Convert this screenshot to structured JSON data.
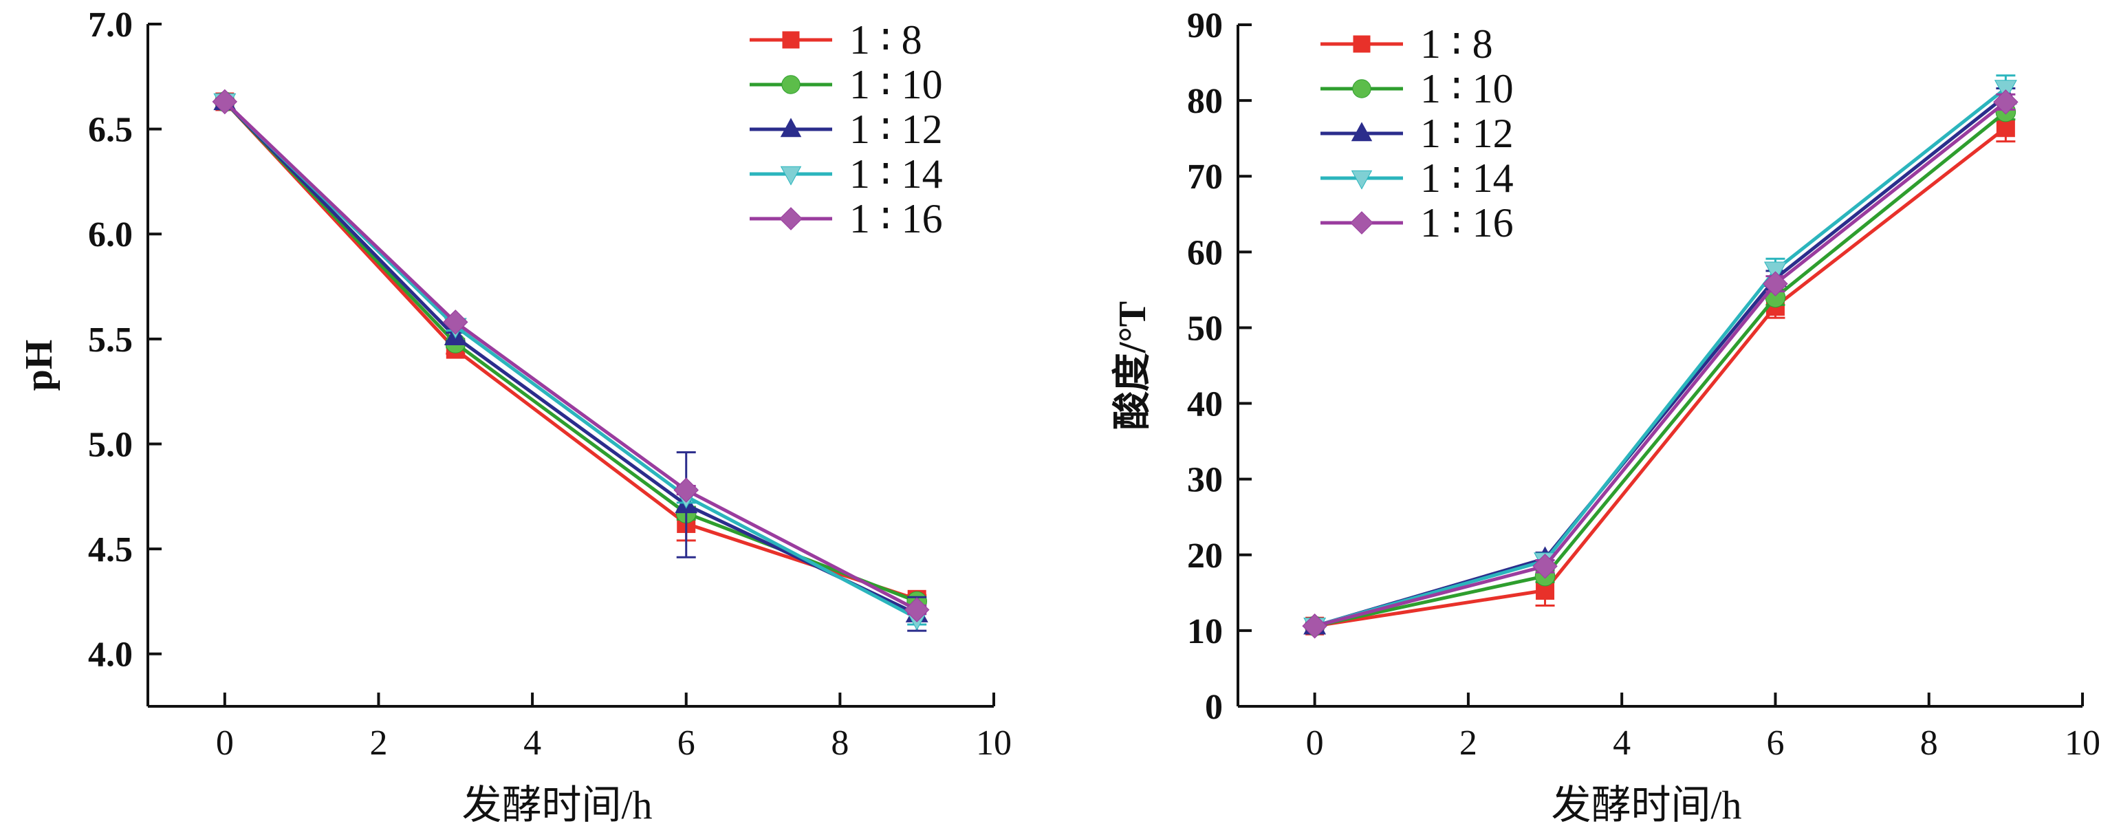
{
  "chart_data": [
    {
      "type": "line",
      "title": "",
      "xlabel": "发酵时间/h",
      "ylabel": "pH",
      "xlim": [
        -1,
        10
      ],
      "ylim": [
        3.75,
        7.0
      ],
      "xticks": [
        0,
        2,
        4,
        6,
        8,
        10
      ],
      "xtick_labels": [
        "0",
        "2",
        "4",
        "6",
        "8",
        "10"
      ],
      "yticks": [
        4.0,
        4.5,
        5.0,
        5.5,
        6.0,
        6.5,
        7.0
      ],
      "ytick_labels": [
        "4.0",
        "4.5",
        "5.0",
        "5.5",
        "6.0",
        "6.5",
        "7.0"
      ],
      "grid": false,
      "legend_position": "top-right",
      "x": [
        0,
        3,
        6,
        9
      ],
      "series": [
        {
          "name": "1 ∶ 8",
          "color": "#e8312a",
          "marker": "square",
          "values": [
            6.63,
            5.45,
            4.62,
            4.26
          ],
          "errors": [
            0.01,
            0.02,
            0.08,
            0.02
          ]
        },
        {
          "name": "1 ∶ 10",
          "color": "#2e9e2e",
          "marker": "circle",
          "values": [
            6.63,
            5.48,
            4.67,
            4.25
          ],
          "errors": [
            0.01,
            0.02,
            0.03,
            0.02
          ]
        },
        {
          "name": "1 ∶ 12",
          "color": "#2b2d8c",
          "marker": "triangle-up",
          "values": [
            6.63,
            5.51,
            4.71,
            4.19
          ],
          "errors": [
            0.01,
            0.02,
            0.25,
            0.08
          ]
        },
        {
          "name": "1 ∶ 14",
          "color": "#2bb5bd",
          "marker": "triangle-down",
          "values": [
            6.63,
            5.56,
            4.75,
            4.17
          ],
          "errors": [
            0.01,
            0.02,
            0.03,
            0.03
          ]
        },
        {
          "name": "1 ∶ 16",
          "color": "#9a3c9e",
          "marker": "diamond",
          "values": [
            6.63,
            5.58,
            4.78,
            4.21
          ],
          "errors": [
            0.01,
            0.01,
            0.02,
            0.02
          ]
        }
      ]
    },
    {
      "type": "line",
      "title": "",
      "xlabel": "发酵时间/h",
      "ylabel": "酸度/°T",
      "xlim": [
        -1,
        10
      ],
      "ylim": [
        0,
        90
      ],
      "xticks": [
        0,
        2,
        4,
        6,
        8,
        10
      ],
      "xtick_labels": [
        "0",
        "2",
        "4",
        "6",
        "8",
        "10"
      ],
      "yticks": [
        0,
        10,
        20,
        30,
        40,
        50,
        60,
        70,
        80,
        90
      ],
      "ytick_labels": [
        "0",
        "10",
        "20",
        "30",
        "40",
        "50",
        "60",
        "70",
        "80",
        "90"
      ],
      "grid": false,
      "legend_position": "top-left",
      "x": [
        0,
        3,
        6,
        9
      ],
      "series": [
        {
          "name": "1 ∶ 8",
          "color": "#e8312a",
          "marker": "square",
          "values": [
            10.6,
            15.3,
            52.8,
            76.4
          ],
          "errors": [
            0.3,
            2.0,
            1.5,
            1.8
          ]
        },
        {
          "name": "1 ∶ 10",
          "color": "#2e9e2e",
          "marker": "circle",
          "values": [
            10.6,
            17.2,
            54.0,
            78.5
          ],
          "errors": [
            0.3,
            0.8,
            1.0,
            1.0
          ]
        },
        {
          "name": "1 ∶ 12",
          "color": "#2b2d8c",
          "marker": "triangle-up",
          "values": [
            10.6,
            19.5,
            56.5,
            80.6
          ],
          "errors": [
            0.3,
            0.8,
            1.0,
            1.0
          ]
        },
        {
          "name": "1 ∶ 14",
          "color": "#2bb5bd",
          "marker": "triangle-down",
          "values": [
            10.6,
            19.2,
            57.6,
            81.6
          ],
          "errors": [
            0.3,
            0.8,
            1.5,
            1.7
          ]
        },
        {
          "name": "1 ∶ 16",
          "color": "#9a3c9e",
          "marker": "diamond",
          "values": [
            10.6,
            18.5,
            55.8,
            79.8
          ],
          "errors": [
            0.3,
            0.8,
            1.0,
            1.0
          ]
        }
      ]
    }
  ]
}
